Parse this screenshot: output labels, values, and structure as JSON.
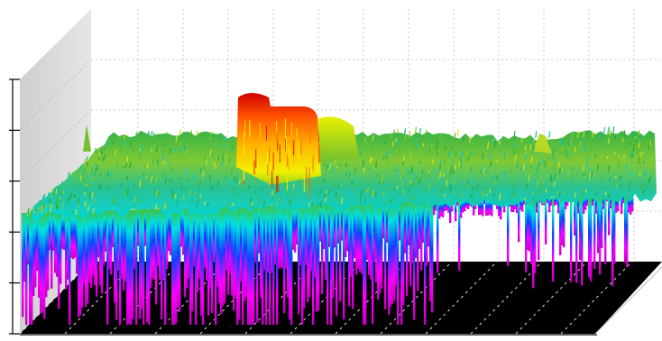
{
  "chart_data": {
    "type": "surface-3d",
    "title": "",
    "xlabel": "",
    "ylabel": "",
    "zlabel": "",
    "grid": true,
    "legend": "none",
    "z_axis_ticks": 6,
    "colormap": [
      "#e00000",
      "#ff8000",
      "#ffff00",
      "#40c040",
      "#00e0e0",
      "#1040ff",
      "#ff00ff"
    ],
    "floor_color": "#000000",
    "wall_color": "#ffffff",
    "side_wall_color": "#d9d9d9",
    "peaks": [
      {
        "name": "main-peak",
        "x": 0.39,
        "depth": 0.5,
        "height": 1.0
      },
      {
        "name": "secondary-peak",
        "x": 0.47,
        "depth": 0.56,
        "height": 0.55
      },
      {
        "name": "small-spike-left",
        "x": 0.11,
        "depth": 0.16,
        "height": 0.35
      },
      {
        "name": "small-spike-right",
        "x": 0.82,
        "depth": 0.75,
        "height": 0.25
      }
    ]
  }
}
